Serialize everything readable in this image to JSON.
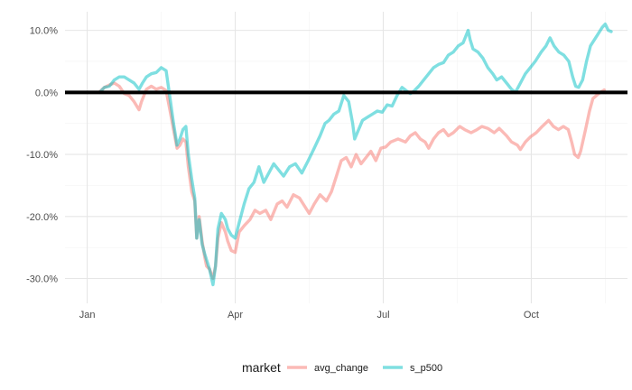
{
  "chart_data": {
    "type": "line",
    "title": "",
    "xlabel": "",
    "ylabel": "",
    "x_unit": "month",
    "x_range": [
      0.55,
      11.95
    ],
    "x_ticks": [
      {
        "value": 1,
        "label": "Jan"
      },
      {
        "value": 4,
        "label": "Apr"
      },
      {
        "value": 7,
        "label": "Jul"
      },
      {
        "value": 10,
        "label": "Oct"
      }
    ],
    "ylim": [
      -34,
      13
    ],
    "y_ticks": [
      {
        "value": 10,
        "label": "10.0%"
      },
      {
        "value": 0,
        "label": "0.0%"
      },
      {
        "value": -10,
        "label": "-10.0%"
      },
      {
        "value": -20,
        "label": "-20.0%"
      },
      {
        "value": -30,
        "label": "-30.0%"
      }
    ],
    "reference_line": {
      "y": 0,
      "color": "#000000"
    },
    "grid": true,
    "legend": {
      "title": "market",
      "position": "bottom"
    },
    "series": [
      {
        "name": "avg_change",
        "color": "#F8766D",
        "points": [
          [
            1.25,
            0.1
          ],
          [
            1.35,
            0.8
          ],
          [
            1.45,
            1.2
          ],
          [
            1.55,
            1.5
          ],
          [
            1.65,
            1.0
          ],
          [
            1.75,
            -0.2
          ],
          [
            1.85,
            -0.5
          ],
          [
            1.95,
            -1.5
          ],
          [
            2.05,
            -2.8
          ],
          [
            2.1,
            -1.5
          ],
          [
            2.2,
            0.5
          ],
          [
            2.3,
            1.0
          ],
          [
            2.4,
            0.5
          ],
          [
            2.5,
            0.8
          ],
          [
            2.6,
            0.3
          ],
          [
            2.68,
            -3.0
          ],
          [
            2.75,
            -6.0
          ],
          [
            2.82,
            -9.0
          ],
          [
            2.88,
            -8.5
          ],
          [
            2.94,
            -7.5
          ],
          [
            3.0,
            -8.0
          ],
          [
            3.05,
            -12.0
          ],
          [
            3.12,
            -16.0
          ],
          [
            3.18,
            -17.5
          ],
          [
            3.22,
            -23.5
          ],
          [
            3.27,
            -20.0
          ],
          [
            3.33,
            -24.0
          ],
          [
            3.38,
            -26.5
          ],
          [
            3.42,
            -28.0
          ],
          [
            3.48,
            -28.5
          ],
          [
            3.55,
            -30.0
          ],
          [
            3.6,
            -28.0
          ],
          [
            3.65,
            -23.5
          ],
          [
            3.72,
            -21.0
          ],
          [
            3.8,
            -22.5
          ],
          [
            3.85,
            -24.0
          ],
          [
            3.92,
            -25.5
          ],
          [
            4.0,
            -25.8
          ],
          [
            4.08,
            -22.5
          ],
          [
            4.18,
            -21.5
          ],
          [
            4.3,
            -20.5
          ],
          [
            4.4,
            -19.0
          ],
          [
            4.5,
            -19.5
          ],
          [
            4.62,
            -19.0
          ],
          [
            4.72,
            -20.5
          ],
          [
            4.85,
            -18.0
          ],
          [
            4.95,
            -17.5
          ],
          [
            5.05,
            -18.5
          ],
          [
            5.18,
            -16.5
          ],
          [
            5.3,
            -17.0
          ],
          [
            5.42,
            -18.5
          ],
          [
            5.5,
            -19.5
          ],
          [
            5.6,
            -18.0
          ],
          [
            5.72,
            -16.5
          ],
          [
            5.85,
            -17.5
          ],
          [
            5.95,
            -16.0
          ],
          [
            6.05,
            -13.5
          ],
          [
            6.15,
            -11.0
          ],
          [
            6.25,
            -10.5
          ],
          [
            6.35,
            -12.0
          ],
          [
            6.45,
            -10.0
          ],
          [
            6.55,
            -11.5
          ],
          [
            6.65,
            -10.5
          ],
          [
            6.75,
            -9.5
          ],
          [
            6.85,
            -11.0
          ],
          [
            6.95,
            -9.0
          ],
          [
            7.05,
            -8.8
          ],
          [
            7.15,
            -8.0
          ],
          [
            7.3,
            -7.5
          ],
          [
            7.45,
            -8.0
          ],
          [
            7.55,
            -7.0
          ],
          [
            7.65,
            -6.5
          ],
          [
            7.75,
            -7.5
          ],
          [
            7.85,
            -8.0
          ],
          [
            7.92,
            -9.0
          ],
          [
            8.02,
            -7.5
          ],
          [
            8.12,
            -6.5
          ],
          [
            8.22,
            -6.0
          ],
          [
            8.32,
            -7.0
          ],
          [
            8.42,
            -6.5
          ],
          [
            8.55,
            -5.5
          ],
          [
            8.65,
            -6.0
          ],
          [
            8.78,
            -6.5
          ],
          [
            8.9,
            -6.0
          ],
          [
            9.0,
            -5.5
          ],
          [
            9.12,
            -5.8
          ],
          [
            9.25,
            -6.5
          ],
          [
            9.35,
            -5.8
          ],
          [
            9.5,
            -7.0
          ],
          [
            9.6,
            -8.0
          ],
          [
            9.72,
            -8.5
          ],
          [
            9.78,
            -9.2
          ],
          [
            9.88,
            -8.0
          ],
          [
            9.98,
            -7.2
          ],
          [
            10.1,
            -6.5
          ],
          [
            10.22,
            -5.5
          ],
          [
            10.35,
            -4.5
          ],
          [
            10.45,
            -5.5
          ],
          [
            10.55,
            -6.0
          ],
          [
            10.65,
            -5.5
          ],
          [
            10.75,
            -6.0
          ],
          [
            10.82,
            -8.0
          ],
          [
            10.88,
            -10.0
          ],
          [
            10.95,
            -10.5
          ],
          [
            11.0,
            -9.5
          ],
          [
            11.1,
            -6.0
          ],
          [
            11.18,
            -3.0
          ],
          [
            11.25,
            -1.0
          ],
          [
            11.32,
            -0.5
          ],
          [
            11.4,
            0.0
          ],
          [
            11.48,
            0.4
          ]
        ]
      },
      {
        "name": "s_p500",
        "color": "#00BFC4",
        "points": [
          [
            1.25,
            0.0
          ],
          [
            1.35,
            0.8
          ],
          [
            1.45,
            1.0
          ],
          [
            1.55,
            2.0
          ],
          [
            1.65,
            2.5
          ],
          [
            1.75,
            2.5
          ],
          [
            1.85,
            2.0
          ],
          [
            1.95,
            1.5
          ],
          [
            2.05,
            0.5
          ],
          [
            2.12,
            1.5
          ],
          [
            2.2,
            2.5
          ],
          [
            2.3,
            3.0
          ],
          [
            2.4,
            3.2
          ],
          [
            2.5,
            4.0
          ],
          [
            2.6,
            3.5
          ],
          [
            2.68,
            -1.0
          ],
          [
            2.75,
            -5.0
          ],
          [
            2.82,
            -8.5
          ],
          [
            2.88,
            -7.5
          ],
          [
            2.94,
            -6.0
          ],
          [
            3.0,
            -5.5
          ],
          [
            3.05,
            -10.0
          ],
          [
            3.12,
            -14.0
          ],
          [
            3.18,
            -17.0
          ],
          [
            3.22,
            -23.5
          ],
          [
            3.27,
            -20.5
          ],
          [
            3.33,
            -24.5
          ],
          [
            3.38,
            -26.0
          ],
          [
            3.42,
            -27.0
          ],
          [
            3.48,
            -28.5
          ],
          [
            3.55,
            -31.0
          ],
          [
            3.6,
            -28.0
          ],
          [
            3.65,
            -22.0
          ],
          [
            3.72,
            -19.5
          ],
          [
            3.8,
            -20.5
          ],
          [
            3.85,
            -22.0
          ],
          [
            3.92,
            -23.0
          ],
          [
            4.0,
            -23.5
          ],
          [
            4.08,
            -21.0
          ],
          [
            4.18,
            -18.0
          ],
          [
            4.28,
            -15.5
          ],
          [
            4.38,
            -14.5
          ],
          [
            4.48,
            -12.0
          ],
          [
            4.58,
            -14.5
          ],
          [
            4.68,
            -13.0
          ],
          [
            4.78,
            -11.5
          ],
          [
            4.88,
            -12.5
          ],
          [
            4.98,
            -13.5
          ],
          [
            5.1,
            -12.0
          ],
          [
            5.22,
            -11.5
          ],
          [
            5.35,
            -13.0
          ],
          [
            5.48,
            -11.0
          ],
          [
            5.6,
            -9.0
          ],
          [
            5.72,
            -7.0
          ],
          [
            5.82,
            -5.0
          ],
          [
            5.9,
            -4.5
          ],
          [
            6.0,
            -3.5
          ],
          [
            6.1,
            -3.0
          ],
          [
            6.2,
            -0.5
          ],
          [
            6.3,
            -1.5
          ],
          [
            6.38,
            -5.0
          ],
          [
            6.42,
            -7.5
          ],
          [
            6.5,
            -6.0
          ],
          [
            6.58,
            -4.5
          ],
          [
            6.68,
            -4.0
          ],
          [
            6.78,
            -3.5
          ],
          [
            6.88,
            -3.0
          ],
          [
            6.98,
            -3.2
          ],
          [
            7.08,
            -2.0
          ],
          [
            7.18,
            -2.2
          ],
          [
            7.28,
            -0.5
          ],
          [
            7.38,
            0.8
          ],
          [
            7.48,
            0.2
          ],
          [
            7.55,
            -0.2
          ],
          [
            7.62,
            0.2
          ],
          [
            7.72,
            1.0
          ],
          [
            7.82,
            2.0
          ],
          [
            7.92,
            3.0
          ],
          [
            8.02,
            4.0
          ],
          [
            8.12,
            4.5
          ],
          [
            8.22,
            4.8
          ],
          [
            8.32,
            6.0
          ],
          [
            8.42,
            6.5
          ],
          [
            8.52,
            7.5
          ],
          [
            8.62,
            8.0
          ],
          [
            8.72,
            10.0
          ],
          [
            8.76,
            8.5
          ],
          [
            8.82,
            7.0
          ],
          [
            8.92,
            6.5
          ],
          [
            9.02,
            5.5
          ],
          [
            9.12,
            4.0
          ],
          [
            9.22,
            3.0
          ],
          [
            9.3,
            2.0
          ],
          [
            9.4,
            2.5
          ],
          [
            9.5,
            1.5
          ],
          [
            9.6,
            0.5
          ],
          [
            9.68,
            0.0
          ],
          [
            9.78,
            1.5
          ],
          [
            9.88,
            3.0
          ],
          [
            9.98,
            4.0
          ],
          [
            10.08,
            5.0
          ],
          [
            10.2,
            6.5
          ],
          [
            10.3,
            7.5
          ],
          [
            10.38,
            8.8
          ],
          [
            10.46,
            7.5
          ],
          [
            10.56,
            6.5
          ],
          [
            10.66,
            6.0
          ],
          [
            10.76,
            5.0
          ],
          [
            10.84,
            2.5
          ],
          [
            10.9,
            1.0
          ],
          [
            10.96,
            0.8
          ],
          [
            11.04,
            2.0
          ],
          [
            11.12,
            5.0
          ],
          [
            11.2,
            7.5
          ],
          [
            11.28,
            8.5
          ],
          [
            11.36,
            9.5
          ],
          [
            11.44,
            10.5
          ],
          [
            11.5,
            11.0
          ],
          [
            11.56,
            10.0
          ],
          [
            11.62,
            9.8
          ]
        ]
      }
    ]
  }
}
